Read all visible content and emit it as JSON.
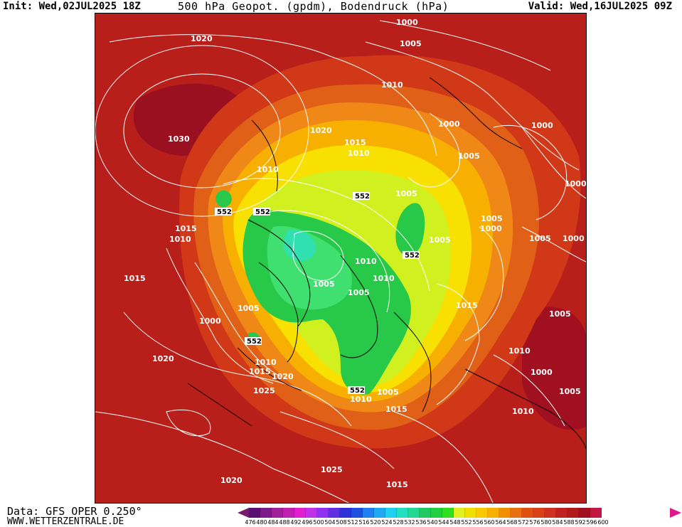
{
  "header": {
    "init": "Init: Wed,02JUL2025 18Z",
    "title": "500 hPa Geopot. (gpdm), Bodendruck (hPa)",
    "valid": "Valid: Wed,16JUL2025 09Z"
  },
  "footer": {
    "data_source": "Data: GFS OPER 0.250°",
    "website": "WWW.WETTERZENTRALE.DE"
  },
  "colorbar": {
    "labels": [
      "476",
      "480",
      "484",
      "488",
      "492",
      "496",
      "500",
      "504",
      "508",
      "512",
      "516",
      "520",
      "524",
      "528",
      "532",
      "536",
      "540",
      "544",
      "548",
      "552",
      "556",
      "560",
      "564",
      "568",
      "572",
      "576",
      "580",
      "584",
      "588",
      "592",
      "596",
      "600"
    ],
    "colors": [
      "#5a1070",
      "#7b1a8a",
      "#a0209a",
      "#c020b0",
      "#e020d0",
      "#c030e8",
      "#9030f0",
      "#6030e0",
      "#3030d8",
      "#2050e0",
      "#2080f0",
      "#20a8f0",
      "#20d0f0",
      "#20e0c0",
      "#20d890",
      "#20c860",
      "#20d040",
      "#30e020",
      "#e0f020",
      "#f0e000",
      "#f8c800",
      "#f8b000",
      "#f09000",
      "#e87010",
      "#e05010",
      "#d84018",
      "#d03020",
      "#c02020",
      "#b01a1a",
      "#a01020",
      "#c01840"
    ]
  },
  "map": {
    "isobar_labels": [
      "1000",
      "1005",
      "1010",
      "1015",
      "1020",
      "1025",
      "1030"
    ],
    "z552_label": "552",
    "colors": {
      "outer_red": "#b81e1a",
      "dark_red": "#9a1020",
      "red_orange": "#d03818",
      "orange": "#e06018",
      "orange_light": "#f08818",
      "amber": "#f8b000",
      "yellow": "#f8e000",
      "lime_yellow": "#d0f020",
      "green": "#28c848",
      "green_light": "#40e070",
      "cyan_green": "#30e0b0",
      "isobar": "#ffffff",
      "coast": "#000000"
    }
  }
}
